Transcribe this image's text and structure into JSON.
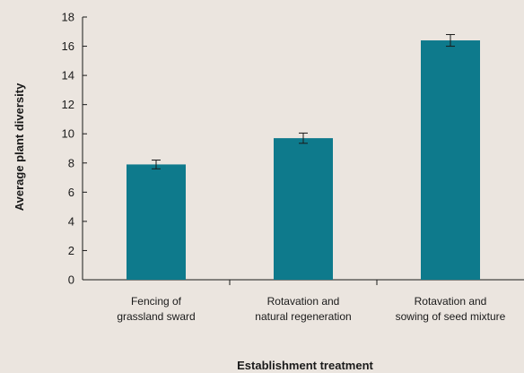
{
  "chart_data": {
    "type": "bar",
    "categories": [
      [
        "Fencing of",
        "grassland sward"
      ],
      [
        "Rotavation and",
        "natural regeneration"
      ],
      [
        "Rotavation and",
        "sowing of seed mixture"
      ]
    ],
    "values": [
      7.9,
      9.7,
      16.4
    ],
    "errors": [
      0.3,
      0.35,
      0.4
    ],
    "xlabel": "Establishment treatment",
    "ylabel": "Average plant diversity",
    "ylim": [
      0,
      18
    ],
    "yticks": [
      0,
      2,
      4,
      6,
      8,
      10,
      12,
      14,
      16,
      18
    ],
    "grid": false,
    "bar_color": "#0e7a8c",
    "background": "#ebe5df"
  }
}
